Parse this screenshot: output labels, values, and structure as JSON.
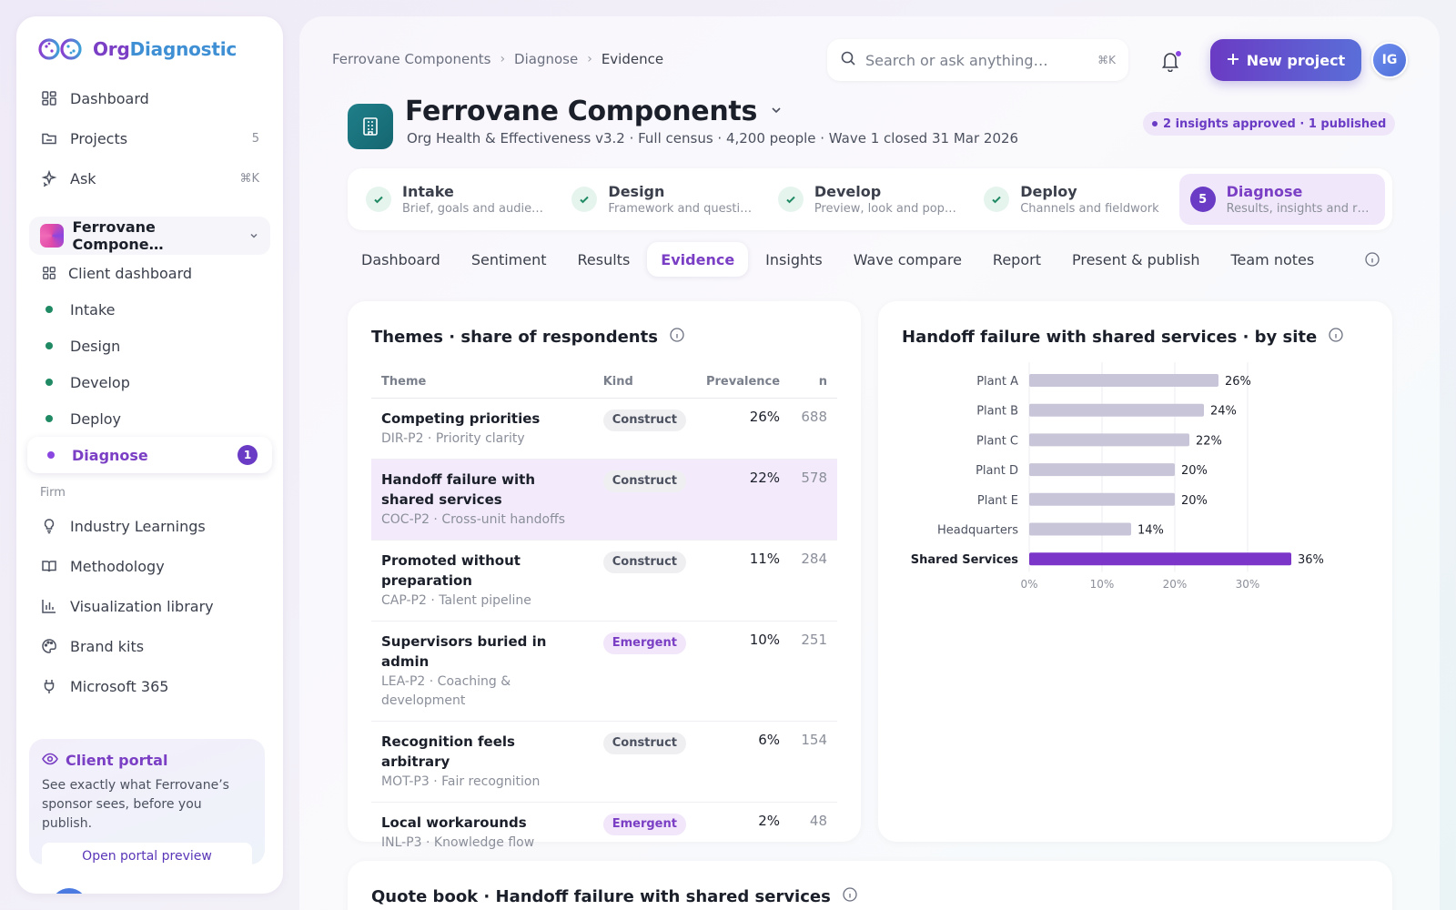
{
  "app": {
    "logo_text_a": "Org",
    "logo_text_b": "Diagnostic"
  },
  "sidebar": {
    "nav": [
      {
        "label": "Dashboard",
        "icon": "grid-icon",
        "meta": ""
      },
      {
        "label": "Projects",
        "icon": "folder-icon",
        "meta": "5"
      },
      {
        "label": "Ask",
        "icon": "sparkle-icon",
        "meta": "⌘K"
      }
    ],
    "client": {
      "name": "Ferrovane Compone…"
    },
    "client_dashboard": "Client dashboard",
    "stages": [
      {
        "label": "Intake"
      },
      {
        "label": "Design"
      },
      {
        "label": "Develop"
      },
      {
        "label": "Deploy"
      }
    ],
    "active_stage": {
      "label": "Diagnose",
      "badge": "1"
    },
    "firm_label": "Firm",
    "firm": [
      {
        "label": "Industry Learnings",
        "icon": "lightbulb-icon"
      },
      {
        "label": "Methodology",
        "icon": "book-icon"
      },
      {
        "label": "Visualization library",
        "icon": "bar-chart-icon"
      },
      {
        "label": "Brand kits",
        "icon": "palette-icon"
      },
      {
        "label": "Microsoft 365",
        "icon": "plug-icon"
      }
    ],
    "portal": {
      "title": "Client portal",
      "desc": "See exactly what Ferrovane’s sponsor sees, before you publish.",
      "button": "Open portal preview"
    }
  },
  "header": {
    "breadcrumb": [
      "Ferrovane Components",
      "Diagnose",
      "Evidence"
    ],
    "search_placeholder": "Search or ask anything…",
    "search_kbd": "⌘K",
    "new_project": "New project",
    "avatar_initials": "IG"
  },
  "project": {
    "title": "Ferrovane Components",
    "subtitle": "Org Health & Effectiveness v3.2 · Full census · 4,200 people · Wave 1 closed 31 Mar 2026",
    "status": "2 insights approved · 1 published"
  },
  "stepper": [
    {
      "title": "Intake",
      "desc": "Brief, goals and audie…",
      "done": true
    },
    {
      "title": "Design",
      "desc": "Framework and questi…",
      "done": true
    },
    {
      "title": "Develop",
      "desc": "Preview, look and pop…",
      "done": true
    },
    {
      "title": "Deploy",
      "desc": "Channels and fieldwork",
      "done": true
    },
    {
      "title": "Diagnose",
      "desc": "Results, insights and r…",
      "num": "5",
      "active": true
    }
  ],
  "tabs": [
    "Dashboard",
    "Sentiment",
    "Results",
    "Evidence",
    "Insights",
    "Wave compare",
    "Report",
    "Present & publish",
    "Team notes"
  ],
  "themes": {
    "title": "Themes · share of respondents",
    "columns": {
      "theme": "Theme",
      "kind": "Kind",
      "prevalence": "Prevalence",
      "n": "n"
    },
    "rows": [
      {
        "name": "Competing priorities",
        "code": "DIR-P2 · Priority clarity",
        "kind": "Construct",
        "prevalence": "26%",
        "n": "688"
      },
      {
        "name": "Handoff failure with shared services",
        "code": "COC-P2 · Cross-unit handoffs",
        "kind": "Construct",
        "prevalence": "22%",
        "n": "578"
      },
      {
        "name": "Promoted without preparation",
        "code": "CAP-P2 · Talent pipeline",
        "kind": "Construct",
        "prevalence": "11%",
        "n": "284"
      },
      {
        "name": "Supervisors buried in admin",
        "code": "LEA-P2 · Coaching & development",
        "kind": "Emergent",
        "prevalence": "10%",
        "n": "251"
      },
      {
        "name": "Recognition feels arbitrary",
        "code": "MOT-P3 · Fair recognition",
        "kind": "Construct",
        "prevalence": "6%",
        "n": "154"
      },
      {
        "name": "Local workarounds",
        "code": "INL-P3 · Knowledge flow",
        "kind": "Emergent",
        "prevalence": "2%",
        "n": "48"
      }
    ]
  },
  "quote_book": {
    "title": "Quote book · Handoff failure with shared services"
  },
  "colors": {
    "accent": "#6a3bc4",
    "bar_default": "#c9c5d8",
    "bar_highlight": "#7b35c8",
    "success": "#1f8a63"
  },
  "chart_data": {
    "type": "bar",
    "orientation": "horizontal",
    "title": "Handoff failure with shared services · by site",
    "categories": [
      "Plant A",
      "Plant B",
      "Plant C",
      "Plant D",
      "Plant E",
      "Headquarters",
      "Shared Services"
    ],
    "values": [
      26,
      24,
      22,
      20,
      20,
      14,
      36
    ],
    "value_labels": [
      "26%",
      "24%",
      "22%",
      "20%",
      "20%",
      "14%",
      "36%"
    ],
    "highlight": "Shared Services",
    "xlim": [
      0,
      35
    ],
    "xticks": [
      0,
      10,
      20,
      30
    ],
    "xtick_labels": [
      "0%",
      "10%",
      "20%",
      "30%"
    ],
    "grid": true,
    "xlabel": "",
    "ylabel": ""
  }
}
